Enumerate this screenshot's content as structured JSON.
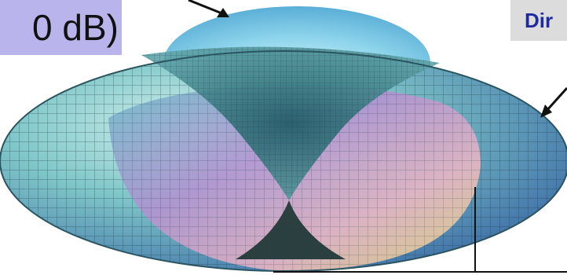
{
  "labels": {
    "left": "0 dB)",
    "right": "Dir"
  },
  "colors": {
    "left_box": "#b9b5ec",
    "right_box": "#dcdcdc",
    "right_text": "#1f2b9c"
  }
}
